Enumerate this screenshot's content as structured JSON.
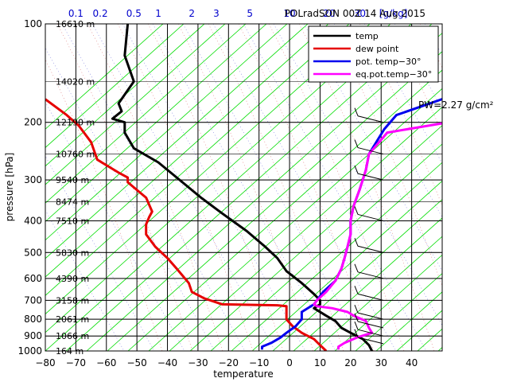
{
  "chart_data": {
    "type": "line",
    "title": "POLradSON 00Z 14 Aug 2015",
    "xlabel": "temperature",
    "ylabel": "pressure [hPa]",
    "x_range": [
      -80,
      50
    ],
    "y_range": [
      1000,
      100
    ],
    "x_ticks": [
      "−80",
      "−70",
      "−60",
      "−50",
      "−40",
      "−30",
      "−20",
      "−10",
      "0",
      "10",
      "20",
      "30",
      "40"
    ],
    "y_ticks": [
      {
        "p": 100,
        "label": "100"
      },
      {
        "p": 200,
        "label": "200"
      },
      {
        "p": 300,
        "label": "300"
      },
      {
        "p": 400,
        "label": "400"
      },
      {
        "p": 500,
        "label": "500"
      },
      {
        "p": 600,
        "label": "600"
      },
      {
        "p": 700,
        "label": "700"
      },
      {
        "p": 800,
        "label": "800"
      },
      {
        "p": 900,
        "label": "900"
      },
      {
        "p": 1000,
        "label": "1000"
      }
    ],
    "mixing_ratio_labels": [
      {
        "x": -70,
        "label": "0.1"
      },
      {
        "x": -62,
        "label": "0.2"
      },
      {
        "x": -51,
        "label": "0.5"
      },
      {
        "x": -43,
        "label": "1"
      },
      {
        "x": -32,
        "label": "2"
      },
      {
        "x": -24,
        "label": "3"
      },
      {
        "x": -13,
        "label": "5"
      },
      {
        "x": 0,
        "label": "10"
      },
      {
        "x": 13,
        "label": "20"
      },
      {
        "x": 23,
        "label": "30"
      },
      {
        "x": 34,
        "label": "[g/kg]"
      }
    ],
    "altitudes": [
      {
        "p": 100,
        "label": "16610 m"
      },
      {
        "p": 150,
        "label": "14020 m"
      },
      {
        "p": 200,
        "label": "12190 m"
      },
      {
        "p": 250,
        "label": "10760 m"
      },
      {
        "p": 300,
        "label": "9540 m"
      },
      {
        "p": 350,
        "label": "8474 m"
      },
      {
        "p": 400,
        "label": "7510 m"
      },
      {
        "p": 500,
        "label": "5830 m"
      },
      {
        "p": 600,
        "label": "4390 m"
      },
      {
        "p": 700,
        "label": "3158 m"
      },
      {
        "p": 800,
        "label": "2061 m"
      },
      {
        "p": 900,
        "label": "1066 m"
      },
      {
        "p": 1000,
        "label": "164 m"
      }
    ],
    "series": [
      {
        "name": "temp",
        "color": "#000000",
        "points": [
          [
            -53,
            100
          ],
          [
            -54,
            125
          ],
          [
            -51,
            150
          ],
          [
            -56,
            175
          ],
          [
            -55,
            185
          ],
          [
            -58,
            195
          ],
          [
            -54,
            200
          ],
          [
            -54,
            215
          ],
          [
            -51,
            240
          ],
          [
            -43,
            265
          ],
          [
            -36,
            300
          ],
          [
            -29,
            340
          ],
          [
            -22,
            380
          ],
          [
            -14,
            430
          ],
          [
            -8,
            480
          ],
          [
            -4,
            520
          ],
          [
            -1,
            570
          ],
          [
            4,
            620
          ],
          [
            8,
            670
          ],
          [
            10,
            700
          ],
          [
            10,
            720
          ],
          [
            8,
            740
          ],
          [
            12,
            780
          ],
          [
            15,
            810
          ],
          [
            17,
            850
          ],
          [
            20,
            880
          ],
          [
            24,
            920
          ],
          [
            26,
            960
          ],
          [
            27,
            1000
          ]
        ]
      },
      {
        "name": "dew point",
        "color": "#e60000",
        "points": [
          [
            -80,
            170
          ],
          [
            -73,
            190
          ],
          [
            -69,
            205
          ],
          [
            -65,
            230
          ],
          [
            -63,
            260
          ],
          [
            -56,
            285
          ],
          [
            -53,
            295
          ],
          [
            -53,
            305
          ],
          [
            -47,
            340
          ],
          [
            -45,
            375
          ],
          [
            -46,
            390
          ],
          [
            -47,
            410
          ],
          [
            -47,
            440
          ],
          [
            -44,
            480
          ],
          [
            -40,
            520
          ],
          [
            -37,
            560
          ],
          [
            -33,
            620
          ],
          [
            -32,
            660
          ],
          [
            -28,
            690
          ],
          [
            -24,
            710
          ],
          [
            -22,
            720
          ],
          [
            -4,
            725
          ],
          [
            -1,
            730
          ],
          [
            -1,
            760
          ],
          [
            -1,
            800
          ],
          [
            1,
            840
          ],
          [
            4,
            880
          ],
          [
            8,
            920
          ],
          [
            10,
            960
          ],
          [
            12,
            1000
          ]
        ]
      },
      {
        "name": "pot. temp−30°",
        "color": "#0000ee",
        "points": [
          [
            -9,
            990
          ],
          [
            -9,
            970
          ],
          [
            -6,
            945
          ],
          [
            -3,
            910
          ],
          [
            -1,
            880
          ],
          [
            2,
            840
          ],
          [
            4,
            800
          ],
          [
            4,
            760
          ],
          [
            8,
            720
          ],
          [
            9,
            700
          ],
          [
            11,
            660
          ],
          [
            15,
            610
          ],
          [
            17,
            560
          ],
          [
            18,
            520
          ],
          [
            19,
            480
          ],
          [
            20,
            440
          ],
          [
            20,
            400
          ],
          [
            21,
            360
          ],
          [
            23,
            320
          ],
          [
            25,
            280
          ],
          [
            26,
            250
          ],
          [
            31,
            210
          ],
          [
            35,
            190
          ],
          [
            46,
            175
          ],
          [
            58,
            160
          ]
        ]
      },
      {
        "name": "eq.pot.temp−30°",
        "color": "#ff00ff",
        "points": [
          [
            16,
            990
          ],
          [
            16,
            970
          ],
          [
            18,
            945
          ],
          [
            22,
            910
          ],
          [
            27,
            880
          ],
          [
            26,
            850
          ],
          [
            25,
            810
          ],
          [
            21,
            780
          ],
          [
            19,
            760
          ],
          [
            14,
            740
          ],
          [
            9,
            730
          ],
          [
            8,
            720
          ],
          [
            9,
            700
          ],
          [
            12,
            660
          ],
          [
            15,
            610
          ],
          [
            17,
            560
          ],
          [
            18,
            520
          ],
          [
            19,
            480
          ],
          [
            20,
            440
          ],
          [
            20,
            400
          ],
          [
            21,
            360
          ],
          [
            23,
            320
          ],
          [
            25,
            280
          ],
          [
            26,
            250
          ],
          [
            32,
            215
          ],
          [
            52,
            200
          ],
          [
            72,
            190
          ]
        ]
      }
    ],
    "legend": "top-right",
    "annotation": "PW=2.27 g/cm²",
    "grid": true
  }
}
